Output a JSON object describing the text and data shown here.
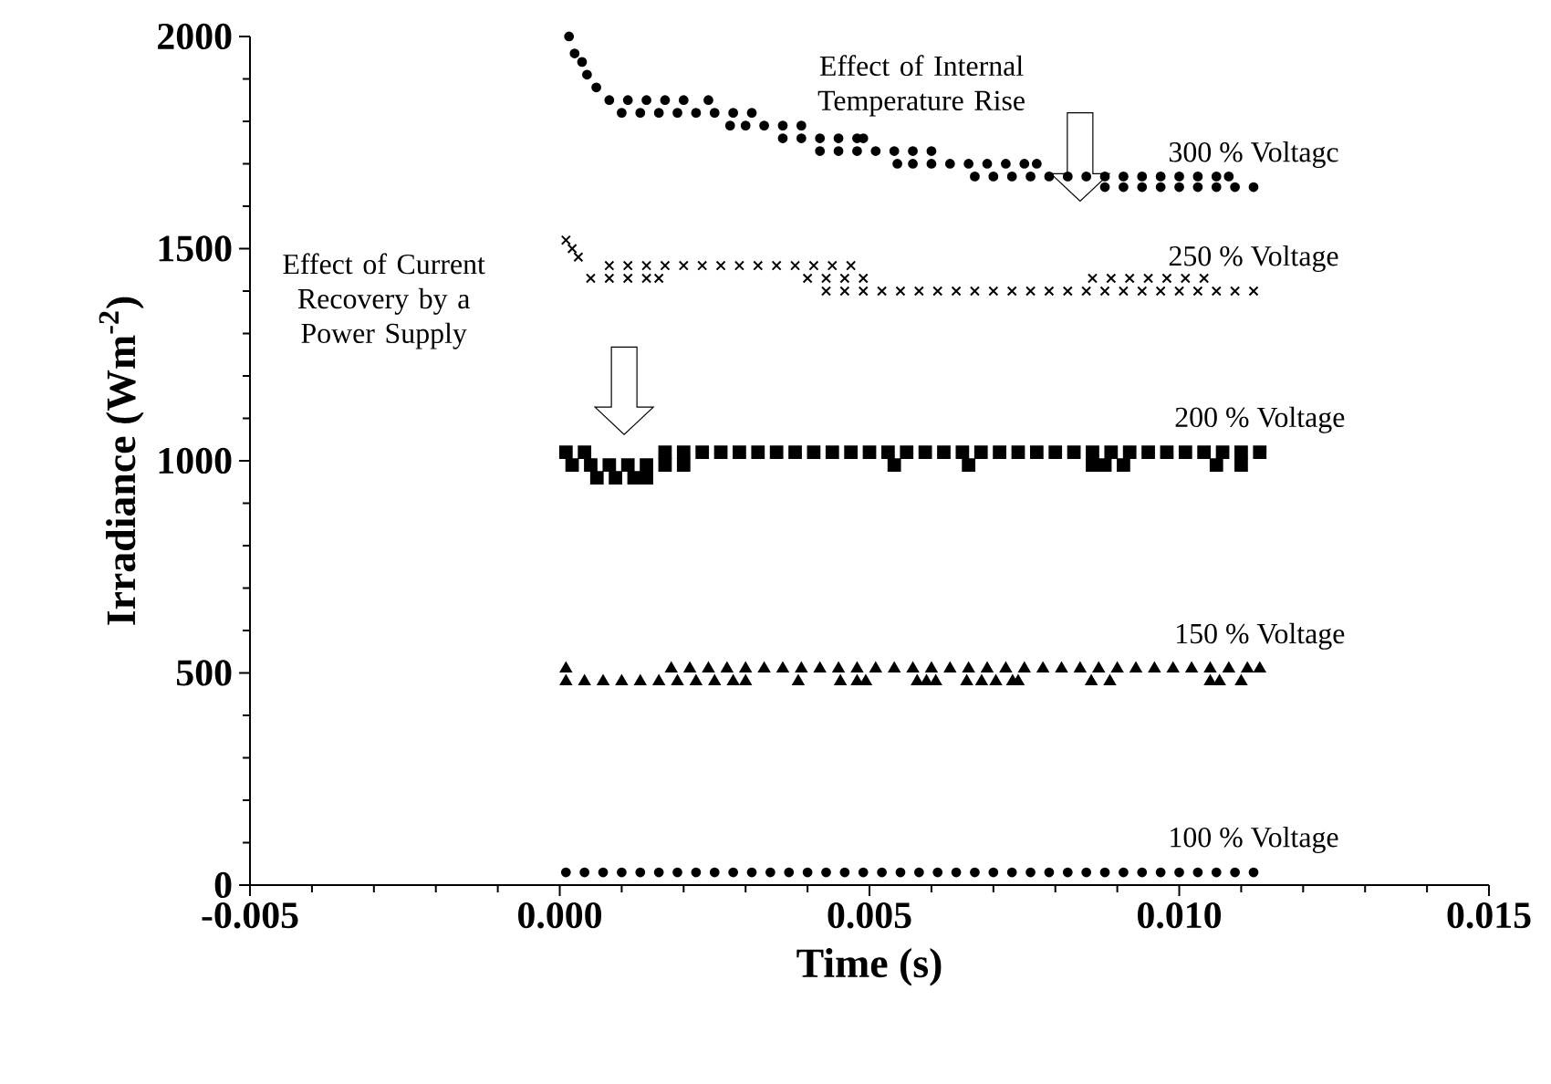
{
  "chart_data": {
    "type": "scatter",
    "xlabel": "Time (s)",
    "ylabel": "Irradiance (Wm$^{-2}$)",
    "xlim": [
      -0.005,
      0.015
    ],
    "ylim": [
      0,
      2000
    ],
    "xticks": [
      {
        "value": -0.005,
        "label": "-0.005"
      },
      {
        "value": 0,
        "label": "0.000"
      },
      {
        "value": 0.005,
        "label": "0.005"
      },
      {
        "value": 0.01,
        "label": "0.010"
      },
      {
        "value": 0.015,
        "label": "0.015"
      }
    ],
    "yticks": [
      0,
      500,
      1000,
      1500,
      2000
    ],
    "grid": false,
    "legend": false,
    "annotations": [
      "Effect of Internal Temperature Rise",
      "Effect of Current Recovery by a Power Supply"
    ],
    "series": [
      {
        "name": "300 % Voltagc",
        "color": "#000000",
        "marker": "circle",
        "x": [
          0.00015,
          0.00024,
          0.00036,
          0.00044,
          0.00059,
          0.0008,
          0.0011,
          0.0014,
          0.0017,
          0.002,
          0.0024,
          0.001,
          0.0013,
          0.0016,
          0.0019,
          0.0022,
          0.0025,
          0.0028,
          0.0031,
          0.00275,
          0.003,
          0.0033,
          0.0036,
          0.0039,
          0.0036,
          0.0039,
          0.0042,
          0.0045,
          0.0048,
          0.0049,
          0.0042,
          0.0045,
          0.0048,
          0.0051,
          0.0054,
          0.0057,
          0.006,
          0.00545,
          0.0057,
          0.006,
          0.0063,
          0.0066,
          0.0069,
          0.0072,
          0.0075,
          0.0077,
          0.0067,
          0.007,
          0.0073,
          0.0076,
          0.0079,
          0.0082,
          0.0085,
          0.0088,
          0.0091,
          0.0094,
          0.0097,
          0.01,
          0.0103,
          0.0106,
          0.0108,
          0.0088,
          0.0091,
          0.0094,
          0.0097,
          0.01,
          0.0103,
          0.0106,
          0.0109,
          0.0112
        ],
        "values": [
          2000,
          1960,
          1940,
          1910,
          1880,
          1850,
          1850,
          1850,
          1850,
          1850,
          1850,
          1820,
          1820,
          1820,
          1820,
          1820,
          1820,
          1820,
          1820,
          1790,
          1790,
          1790,
          1790,
          1790,
          1760,
          1760,
          1760,
          1760,
          1760,
          1760,
          1730,
          1730,
          1730,
          1730,
          1730,
          1730,
          1730,
          1700,
          1700,
          1700,
          1700,
          1700,
          1700,
          1700,
          1700,
          1700,
          1670,
          1670,
          1670,
          1670,
          1670,
          1670,
          1670,
          1670,
          1670,
          1670,
          1670,
          1670,
          1670,
          1670,
          1670,
          1645,
          1645,
          1645,
          1645,
          1645,
          1645,
          1645,
          1645,
          1645
        ]
      },
      {
        "name": "250 % Voltage",
        "color": "#000000",
        "marker": "cross",
        "x": [
          0.0001,
          0.0002,
          0.0003,
          0.0008,
          0.0011,
          0.0014,
          0.0017,
          0.002,
          0.0023,
          0.0026,
          0.0029,
          0.0032,
          0.0035,
          0.0038,
          0.0041,
          0.0044,
          0.0047,
          0.0005,
          0.0008,
          0.0011,
          0.0014,
          0.0016,
          0.004,
          0.0043,
          0.0046,
          0.0049,
          0.0086,
          0.0089,
          0.0092,
          0.0095,
          0.0098,
          0.0101,
          0.0104,
          0.0043,
          0.0046,
          0.0049,
          0.0052,
          0.0055,
          0.0058,
          0.0061,
          0.0064,
          0.0067,
          0.007,
          0.0073,
          0.0076,
          0.0079,
          0.0082,
          0.0085,
          0.0088,
          0.0091,
          0.0094,
          0.0097,
          0.01,
          0.0103,
          0.0106,
          0.0109,
          0.0112
        ],
        "values": [
          1520,
          1500,
          1480,
          1460,
          1460,
          1460,
          1460,
          1460,
          1460,
          1460,
          1460,
          1460,
          1460,
          1460,
          1460,
          1460,
          1460,
          1430,
          1430,
          1430,
          1430,
          1430,
          1430,
          1430,
          1430,
          1430,
          1430,
          1430,
          1430,
          1430,
          1430,
          1430,
          1430,
          1400,
          1400,
          1400,
          1400,
          1400,
          1400,
          1400,
          1400,
          1400,
          1400,
          1400,
          1400,
          1400,
          1400,
          1400,
          1400,
          1400,
          1400,
          1400,
          1400,
          1400,
          1400,
          1400,
          1400
        ]
      },
      {
        "name": "200 % Voltage",
        "color": "#000000",
        "marker": "square",
        "x": [
          0.0001,
          0.0004,
          0.0017,
          0.002,
          0.0023,
          0.0026,
          0.0029,
          0.0032,
          0.0035,
          0.0038,
          0.0041,
          0.0044,
          0.0047,
          0.005,
          0.0053,
          0.0056,
          0.0059,
          0.0062,
          0.0065,
          0.0068,
          0.0071,
          0.0074,
          0.0077,
          0.008,
          0.0083,
          0.0086,
          0.0089,
          0.0092,
          0.0095,
          0.0098,
          0.0101,
          0.0104,
          0.0107,
          0.011,
          0.0002,
          0.0005,
          0.0008,
          0.0011,
          0.0014,
          0.0017,
          0.002,
          0.0054,
          0.0066,
          0.0086,
          0.0088,
          0.0091,
          0.0106,
          0.011,
          0.0006,
          0.0009,
          0.0012,
          0.0014,
          0.0113
        ],
        "values": [
          1020,
          1020,
          1020,
          1020,
          1020,
          1020,
          1020,
          1020,
          1020,
          1020,
          1020,
          1020,
          1020,
          1020,
          1020,
          1020,
          1020,
          1020,
          1020,
          1020,
          1020,
          1020,
          1020,
          1020,
          1020,
          1020,
          1020,
          1020,
          1020,
          1020,
          1020,
          1020,
          1020,
          1020,
          990,
          990,
          990,
          990,
          990,
          990,
          990,
          990,
          990,
          990,
          990,
          990,
          990,
          990,
          960,
          960,
          960,
          960,
          1020
        ]
      },
      {
        "name": "150 % Voltage",
        "color": "#000000",
        "marker": "triangle",
        "x": [
          0.0001,
          0.0001,
          0.0004,
          0.0007,
          0.001,
          0.0013,
          0.0016,
          0.0019,
          0.0022,
          0.0025,
          0.0028,
          0.003,
          0.00385,
          0.00453,
          0.0048,
          0.00494,
          0.00577,
          0.00592,
          0.00607,
          0.00657,
          0.00681,
          0.00704,
          0.00731,
          0.0074,
          0.00858,
          0.00888,
          0.0105,
          0.01065,
          0.011,
          0.0018,
          0.0021,
          0.0024,
          0.0027,
          0.003,
          0.0033,
          0.0036,
          0.0039,
          0.0042,
          0.0045,
          0.0048,
          0.0051,
          0.0054,
          0.0057,
          0.006,
          0.0063,
          0.0066,
          0.0069,
          0.0072,
          0.0075,
          0.0078,
          0.0081,
          0.0084,
          0.0087,
          0.009,
          0.0093,
          0.0096,
          0.0099,
          0.0102,
          0.0105,
          0.0108,
          0.0111,
          0.0113
        ],
        "values": [
          510,
          480,
          480,
          480,
          480,
          480,
          480,
          480,
          480,
          480,
          480,
          480,
          480,
          480,
          480,
          480,
          480,
          480,
          480,
          480,
          480,
          480,
          480,
          480,
          480,
          480,
          480,
          480,
          480,
          510,
          510,
          510,
          510,
          510,
          510,
          510,
          510,
          510,
          510,
          510,
          510,
          510,
          510,
          510,
          510,
          510,
          510,
          510,
          510,
          510,
          510,
          510,
          510,
          510,
          510,
          510,
          510,
          510,
          510,
          510,
          510,
          510
        ]
      },
      {
        "name": "100 % Voltage",
        "color": "#000000",
        "marker": "circle",
        "x": [
          0.0001,
          0.0004,
          0.0007,
          0.001,
          0.0013,
          0.0016,
          0.0019,
          0.0022,
          0.0025,
          0.0028,
          0.0031,
          0.0034,
          0.0037,
          0.004,
          0.0043,
          0.0046,
          0.0049,
          0.0052,
          0.0055,
          0.0058,
          0.0061,
          0.0064,
          0.0067,
          0.007,
          0.0073,
          0.0076,
          0.0079,
          0.0082,
          0.0085,
          0.0088,
          0.0091,
          0.0094,
          0.0097,
          0.01,
          0.0103,
          0.0106,
          0.0109,
          0.0112
        ],
        "values": [
          30,
          30,
          30,
          30,
          30,
          30,
          30,
          30,
          30,
          30,
          30,
          30,
          30,
          30,
          30,
          30,
          30,
          30,
          30,
          30,
          30,
          30,
          30,
          30,
          30,
          30,
          30,
          30,
          30,
          30,
          30,
          30,
          30,
          30,
          30,
          30,
          30,
          30
        ]
      }
    ]
  }
}
